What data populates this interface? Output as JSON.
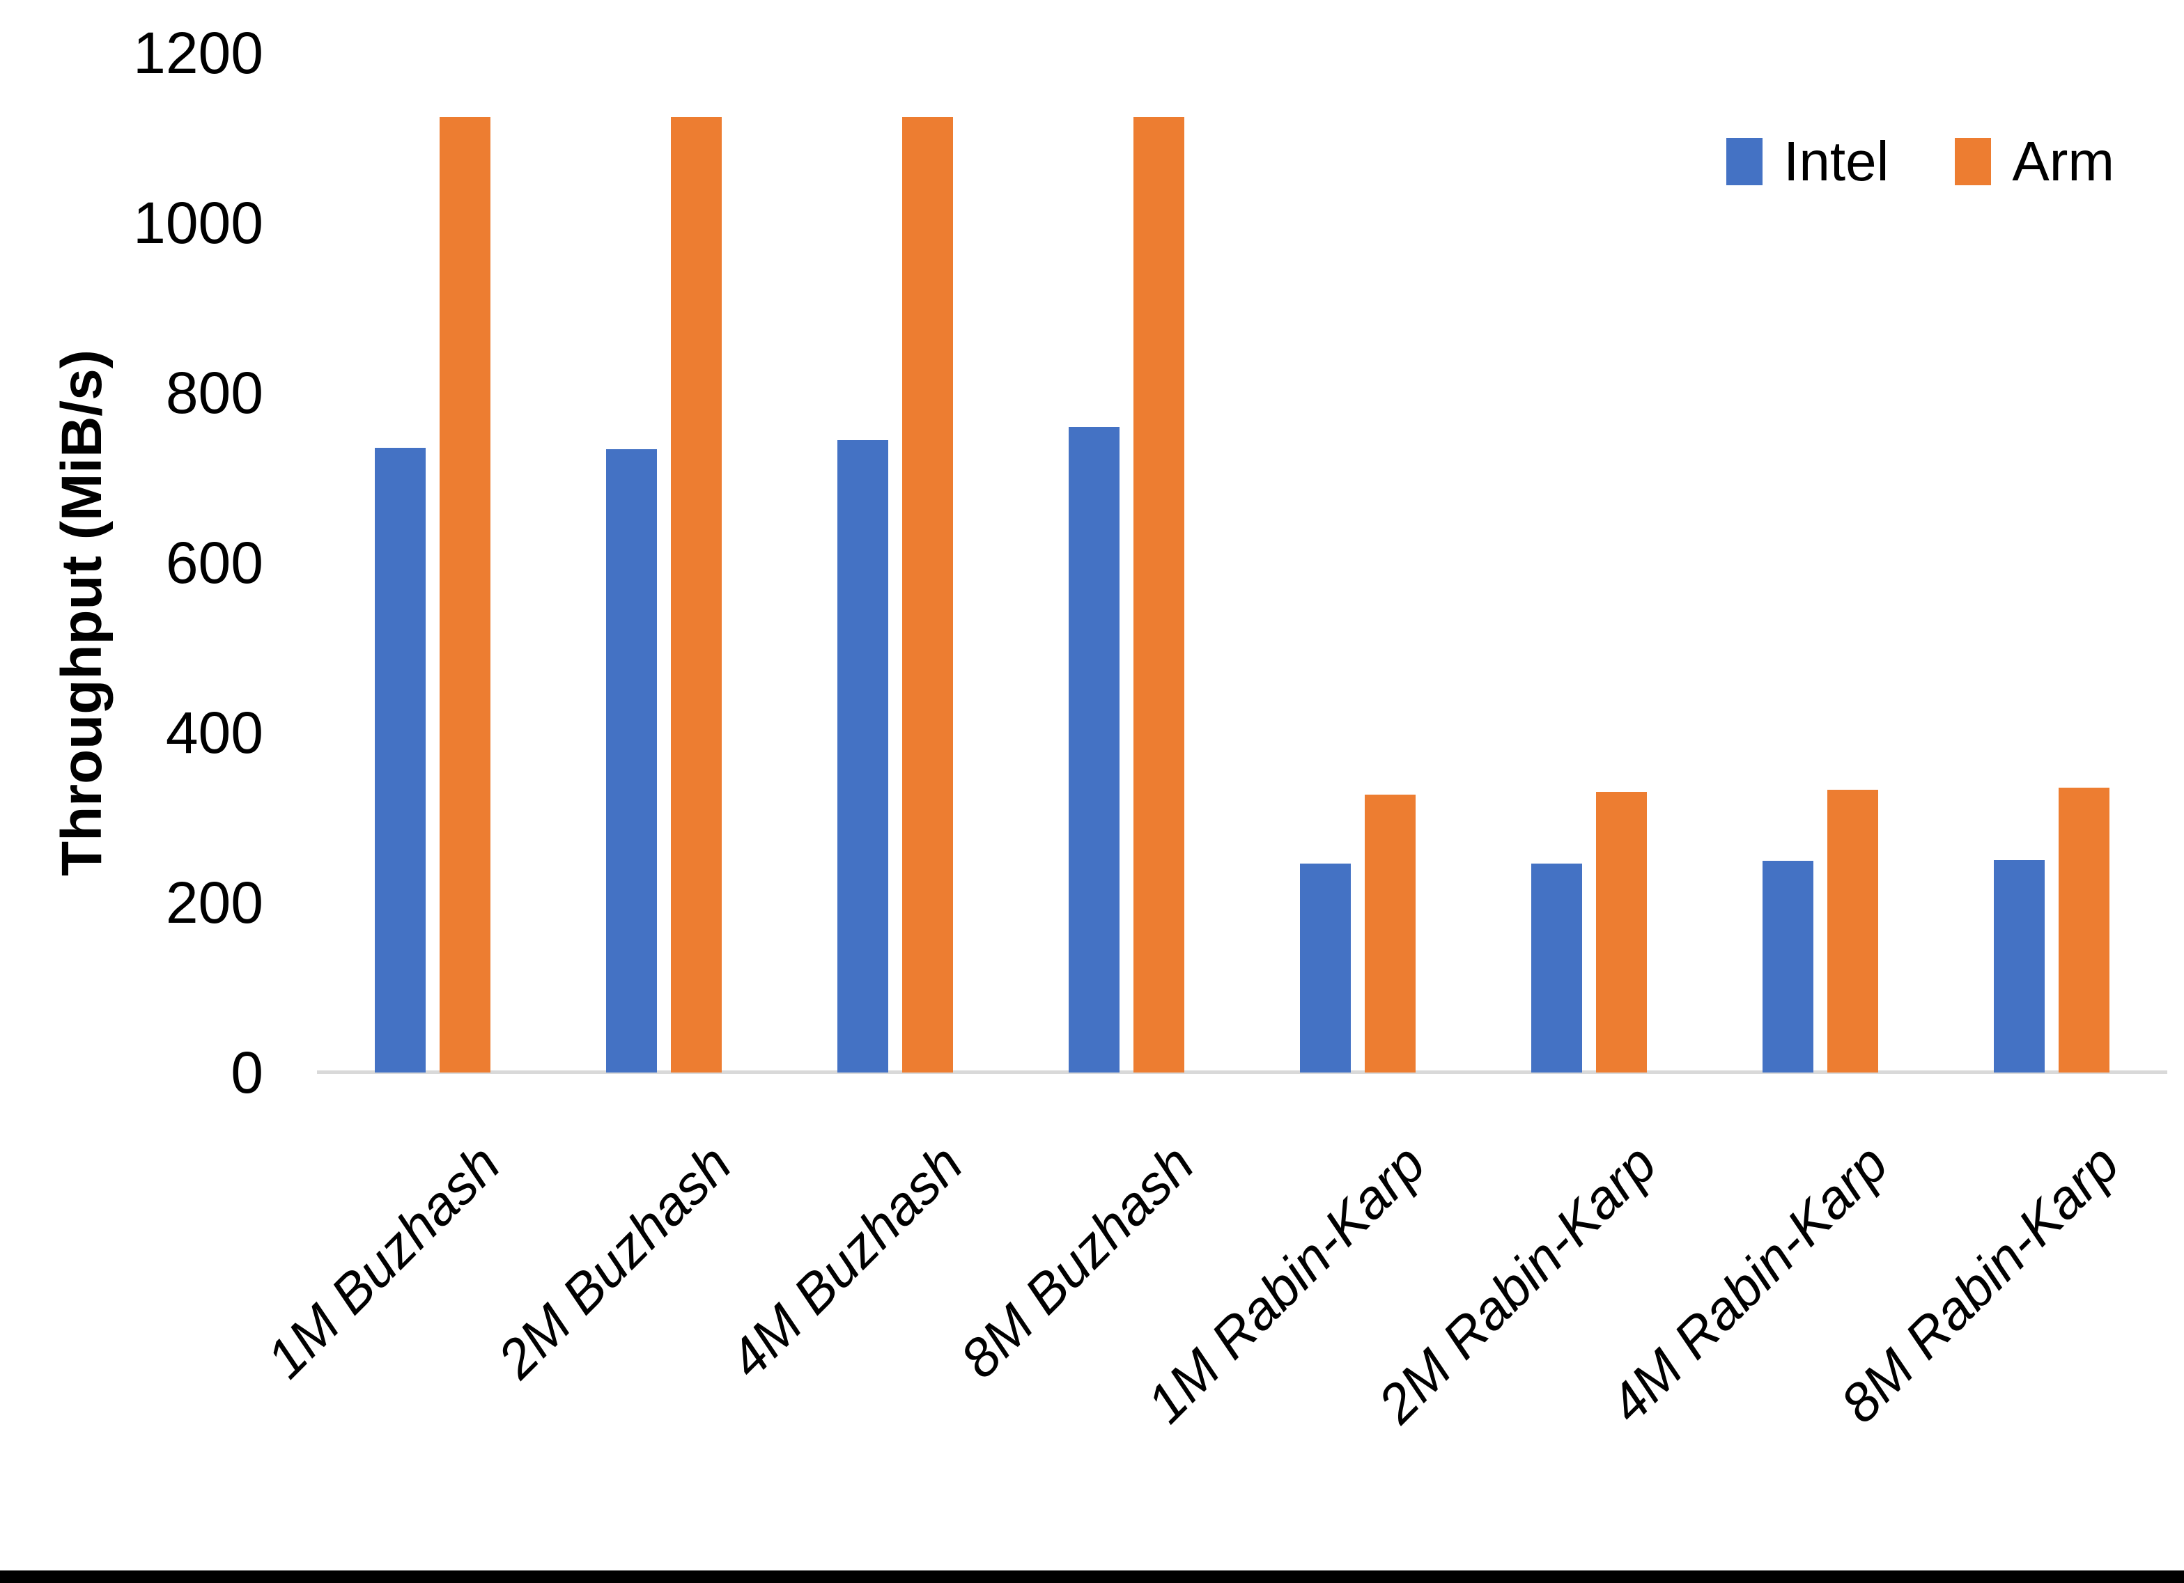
{
  "chart_data": {
    "type": "bar",
    "title": "",
    "xlabel": "",
    "ylabel": "Throughput (MiB/s)",
    "ylim": [
      0,
      1200
    ],
    "yticks": [
      0,
      200,
      400,
      600,
      800,
      1000,
      1200
    ],
    "grid": false,
    "legend_position": "top-right",
    "categories": [
      "1M Buzhash",
      "2M Buzhash",
      "4M Buzhash",
      "8M Buzhash",
      "1M Rabin-Karp",
      "2M Rabin-Karp",
      "4M Rabin-Karp",
      "8M Rabin-Karp"
    ],
    "series": [
      {
        "name": "Intel",
        "color": "#4472C4",
        "values": [
          735,
          734,
          744,
          760,
          246,
          246,
          249,
          250
        ]
      },
      {
        "name": "Arm",
        "color": "#ED7D31",
        "values": [
          1125,
          1125,
          1125,
          1125,
          327,
          330,
          333,
          335
        ]
      }
    ]
  },
  "colors": {
    "intel": "#4472C4",
    "arm": "#ED7D31",
    "axis_line": "#D9D9D9",
    "text": "#000000",
    "background": "#FFFFFF",
    "bottom_bar": "#000000"
  }
}
